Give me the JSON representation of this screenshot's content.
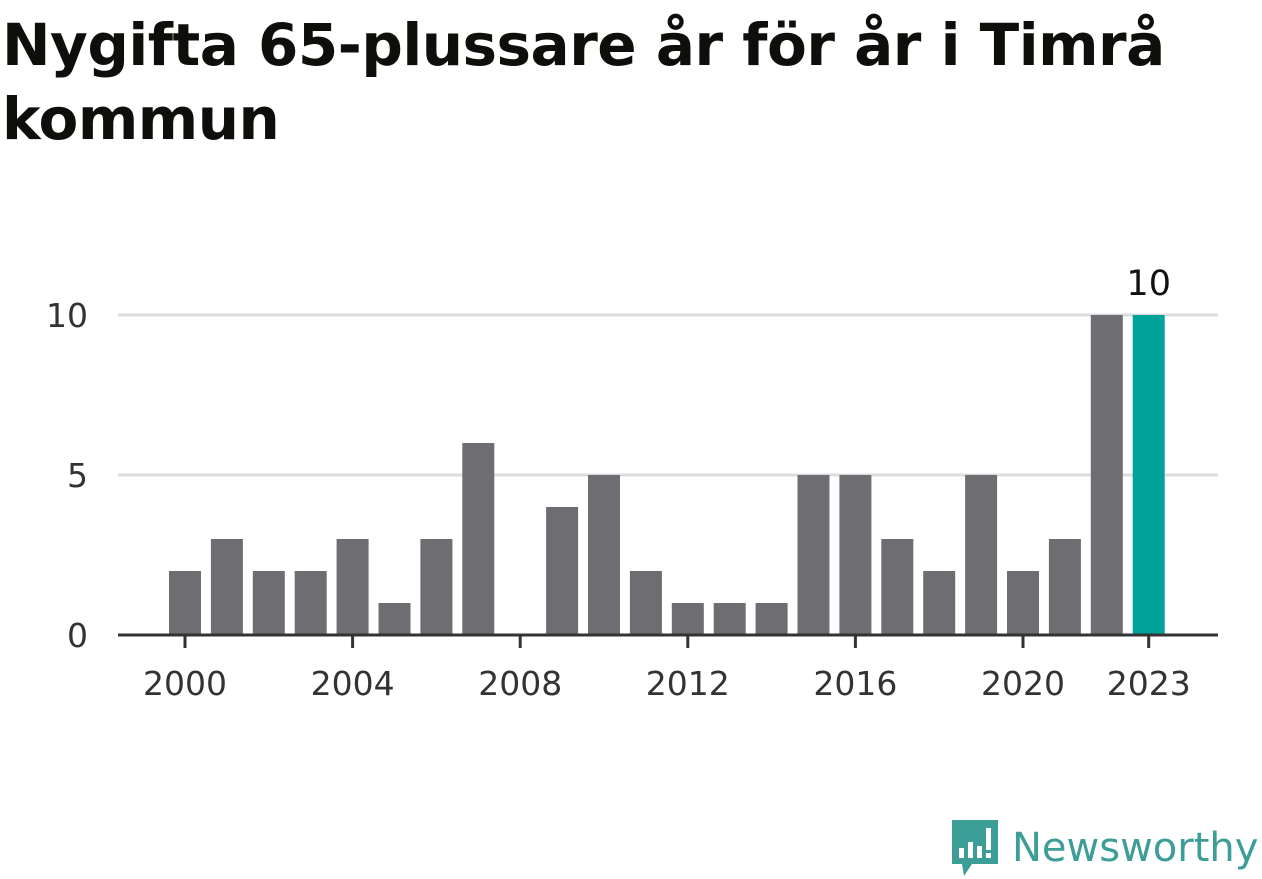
{
  "title": "Nygifta 65-plussare år för år i Timrå kommun",
  "brand": {
    "name": "Newsworthy",
    "icon": "newsworthy-logo-icon",
    "color": "#3d9d97"
  },
  "colors": {
    "bar": "#6e6d72",
    "highlight": "#00a39a",
    "grid": "#dcdcdc",
    "axis": "#333333"
  },
  "chart_data": {
    "type": "bar",
    "categories": [
      2000,
      2001,
      2002,
      2003,
      2004,
      2005,
      2006,
      2007,
      2008,
      2009,
      2010,
      2011,
      2012,
      2013,
      2014,
      2015,
      2016,
      2017,
      2018,
      2019,
      2020,
      2021,
      2022,
      2023
    ],
    "values": [
      2,
      3,
      2,
      2,
      3,
      1,
      3,
      6,
      0,
      4,
      5,
      2,
      1,
      1,
      1,
      5,
      5,
      3,
      2,
      5,
      2,
      3,
      10,
      10
    ],
    "highlight_category": 2023,
    "highlight_label": "10",
    "ylim": [
      0,
      10
    ],
    "yticks": [
      "0",
      "5",
      "10"
    ],
    "xticks": [
      "2000",
      "2004",
      "2008",
      "2012",
      "2016",
      "2020",
      "2023"
    ],
    "grid": true
  }
}
